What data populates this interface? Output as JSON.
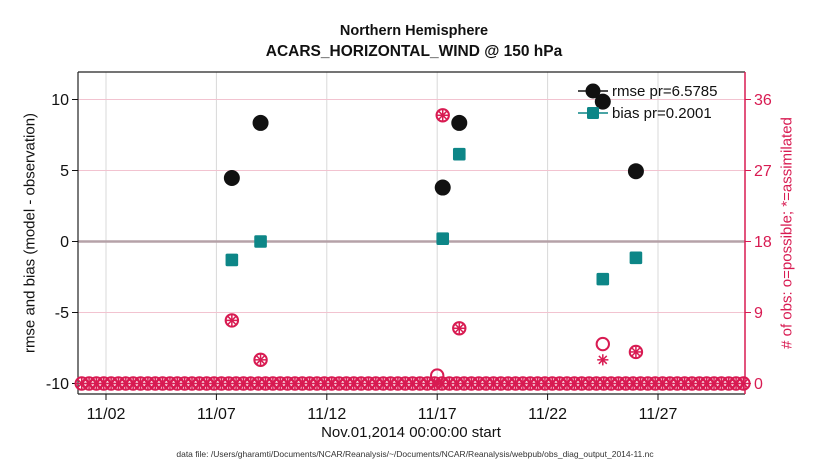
{
  "caption": "data file: /Users/gharamti/Documents/NCAR/Reanalysis/~/Documents/NCAR/Reanalysis/webpub/obs_diag_output_2014-11.nc",
  "colors": {
    "rmse_black": "#111111",
    "bias_teal": "#0d8687",
    "obs_pink": "#d81b52",
    "grid_pink": "#f2c3d0",
    "grid_gray": "#d8d8d8",
    "zero_line": "#b5a2a8",
    "spine_black": "#222222"
  },
  "chart_data": {
    "type": "scatter",
    "title": "Northern Hemisphere",
    "subtitle": "ACARS_HORIZONTAL_WIND @ 150 hPa",
    "xlabel": "Nov.01,2014 00:00:00 start",
    "ylabel_left": "rmse and bias (model - observation)",
    "ylabel_right": "# of obs: o=possible; *=assimilated",
    "x_tick_labels": [
      "11/02",
      "11/07",
      "11/12",
      "11/17",
      "11/22",
      "11/27"
    ],
    "x_tick_days": [
      2,
      7,
      12,
      17,
      22,
      27
    ],
    "x_range_days": [
      0.73,
      30.94
    ],
    "y_left_ticks": [
      -10,
      -5,
      0,
      5,
      10
    ],
    "y_left_range": [
      -10.74,
      11.94
    ],
    "y_right_ticks": [
      0,
      9,
      18,
      27,
      36
    ],
    "grid": true,
    "legend_position": "top-right-inside",
    "series": [
      {
        "name": "rmse pr=6.5785",
        "axis": "left",
        "marker": "filled-circle",
        "color": "#111111",
        "points": [
          [
            7.7,
            4.47
          ],
          [
            9.0,
            8.35
          ],
          [
            17.25,
            3.8
          ],
          [
            18.0,
            8.35
          ],
          [
            24.5,
            9.85
          ],
          [
            26.0,
            4.95
          ]
        ]
      },
      {
        "name": "bias pr=0.2001",
        "axis": "left",
        "marker": "filled-square",
        "color": "#0d8687",
        "points": [
          [
            7.7,
            -1.3
          ],
          [
            9.0,
            0.0
          ],
          [
            17.25,
            0.2
          ],
          [
            18.0,
            6.15
          ],
          [
            24.5,
            -2.65
          ],
          [
            26.0,
            -1.15
          ]
        ]
      },
      {
        "name": "obs possible (o)",
        "axis": "right",
        "marker": "open-circle",
        "color": "#d81b52",
        "points": [
          [
            7.7,
            8
          ],
          [
            9.0,
            3
          ],
          [
            17.0,
            1
          ],
          [
            17.25,
            34
          ],
          [
            18.0,
            7
          ],
          [
            24.5,
            5
          ],
          [
            26.0,
            4
          ]
        ]
      },
      {
        "name": "obs assimilated (*)",
        "axis": "right",
        "marker": "asterisk",
        "color": "#d81b52",
        "points": [
          [
            7.7,
            8
          ],
          [
            9.0,
            3
          ],
          [
            17.0,
            0
          ],
          [
            17.25,
            34
          ],
          [
            18.0,
            7
          ],
          [
            24.5,
            3
          ],
          [
            26.0,
            4
          ]
        ]
      }
    ],
    "zero_obs_row": {
      "marker": "open-circle+asterisk",
      "value": 0,
      "day_start": 0.9,
      "day_end": 30.9,
      "day_step": 0.333
    }
  }
}
